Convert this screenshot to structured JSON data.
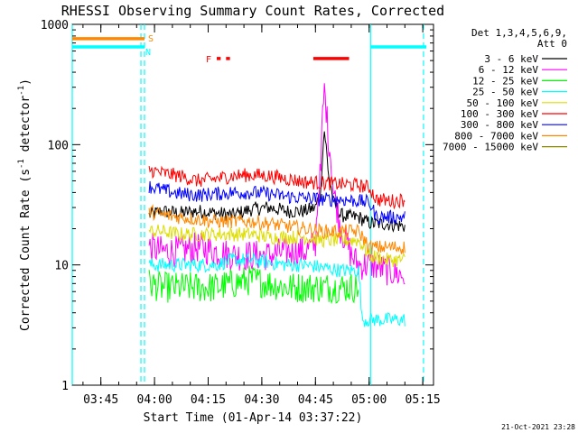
{
  "chart_data": {
    "type": "line",
    "title": "RHESSI Observing Summary Count Rates, Corrected",
    "xlabel": "Start Time (01-Apr-14 03:37:22)",
    "ylabel": "Corrected Count Rate (s",
    "ylabel_sup1": "-1",
    "ylabel_mid": " detector",
    "ylabel_sup2": "-1",
    "ylabel_end": ")",
    "y_scale": "log",
    "ylim": [
      1,
      1000
    ],
    "xlim_minutes_after_0337": [
      0,
      101
    ],
    "y_ticks": [
      {
        "value": 1,
        "label": "1"
      },
      {
        "value": 10,
        "label": "10"
      },
      {
        "value": 100,
        "label": "100"
      },
      {
        "value": 1000,
        "label": "1000"
      }
    ],
    "x_ticks": [
      {
        "minute": 8,
        "label": "03:45"
      },
      {
        "minute": 23,
        "label": "04:00"
      },
      {
        "minute": 38,
        "label": "04:15"
      },
      {
        "minute": 53,
        "label": "04:30"
      },
      {
        "minute": 68,
        "label": "04:45"
      },
      {
        "minute": 83,
        "label": "05:00"
      },
      {
        "minute": 98,
        "label": "05:15"
      }
    ],
    "legend": {
      "position": "right",
      "header": [
        "Det 1,3,4,5,6,9,",
        "Att 0"
      ]
    },
    "series": [
      {
        "name": "3 - 6 keV",
        "color": "#000000",
        "points": [
          [
            21.5,
            26
          ],
          [
            25,
            28
          ],
          [
            30,
            27
          ],
          [
            35,
            28
          ],
          [
            40,
            27
          ],
          [
            45,
            26
          ],
          [
            50,
            29
          ],
          [
            55,
            30
          ],
          [
            60,
            28
          ],
          [
            65,
            28
          ],
          [
            68,
            30
          ],
          [
            69.5,
            40
          ],
          [
            70.5,
            130
          ],
          [
            71.5,
            60
          ],
          [
            73,
            33
          ],
          [
            75,
            26
          ],
          [
            78,
            25
          ],
          [
            80,
            25
          ],
          [
            82,
            23
          ],
          [
            84,
            22
          ],
          [
            88,
            22
          ],
          [
            93,
            21
          ]
        ]
      },
      {
        "name": "6 - 12 keV",
        "color": "#ff00ff",
        "points": [
          [
            21.5,
            14
          ],
          [
            25,
            13
          ],
          [
            30,
            13
          ],
          [
            35,
            14
          ],
          [
            40,
            13
          ],
          [
            45,
            12
          ],
          [
            50,
            12
          ],
          [
            55,
            12
          ],
          [
            60,
            13
          ],
          [
            65,
            13
          ],
          [
            68,
            15
          ],
          [
            69.5,
            60
          ],
          [
            70.5,
            280
          ],
          [
            71.5,
            120
          ],
          [
            73,
            40
          ],
          [
            75,
            20
          ],
          [
            78,
            12
          ],
          [
            80,
            10
          ],
          [
            82,
            10
          ],
          [
            84,
            10
          ],
          [
            88,
            9
          ],
          [
            93,
            8
          ]
        ]
      },
      {
        "name": "12 - 25 keV",
        "color": "#00ff00",
        "points": [
          [
            21.5,
            7
          ],
          [
            25,
            6.5
          ],
          [
            30,
            6.5
          ],
          [
            35,
            6.5
          ],
          [
            40,
            6.5
          ],
          [
            45,
            7
          ],
          [
            50,
            7.5
          ],
          [
            55,
            7
          ],
          [
            60,
            6.5
          ],
          [
            65,
            6.5
          ],
          [
            70,
            6.5
          ],
          [
            75,
            6.5
          ],
          [
            78,
            6.5
          ],
          [
            80,
            6.5
          ]
        ]
      },
      {
        "name": "25 - 50 keV",
        "color": "#00ffff",
        "points": [
          [
            21.5,
            10
          ],
          [
            25,
            10
          ],
          [
            30,
            10
          ],
          [
            35,
            10
          ],
          [
            40,
            10
          ],
          [
            45,
            11
          ],
          [
            50,
            11
          ],
          [
            55,
            10.5
          ],
          [
            60,
            10
          ],
          [
            65,
            10
          ],
          [
            70,
            9.5
          ],
          [
            75,
            9
          ],
          [
            78,
            9
          ],
          [
            80,
            9
          ],
          [
            81,
            3.5
          ],
          [
            85,
            3.5
          ],
          [
            90,
            3.5
          ],
          [
            93,
            3.5
          ]
        ]
      },
      {
        "name": "50 - 100 keV",
        "color": "#dddd00",
        "points": [
          [
            21.5,
            19
          ],
          [
            25,
            19
          ],
          [
            30,
            18
          ],
          [
            35,
            18
          ],
          [
            40,
            18
          ],
          [
            45,
            18
          ],
          [
            50,
            18
          ],
          [
            55,
            17
          ],
          [
            60,
            17
          ],
          [
            65,
            17
          ],
          [
            70,
            16
          ],
          [
            75,
            16
          ],
          [
            80,
            16
          ],
          [
            83,
            12
          ],
          [
            88,
            11
          ],
          [
            93,
            11
          ]
        ]
      },
      {
        "name": "100 - 300 keV",
        "color": "#ff0000",
        "points": [
          [
            21.5,
            62
          ],
          [
            25,
            58
          ],
          [
            30,
            55
          ],
          [
            35,
            50
          ],
          [
            40,
            52
          ],
          [
            45,
            55
          ],
          [
            50,
            56
          ],
          [
            55,
            55
          ],
          [
            60,
            52
          ],
          [
            65,
            49
          ],
          [
            70,
            48
          ],
          [
            75,
            47
          ],
          [
            80,
            46
          ],
          [
            83,
            44
          ],
          [
            85,
            35
          ],
          [
            90,
            34
          ],
          [
            93,
            35
          ]
        ]
      },
      {
        "name": "300 - 800 keV",
        "color": "#0000ff",
        "points": [
          [
            21.5,
            45
          ],
          [
            25,
            42
          ],
          [
            30,
            39
          ],
          [
            35,
            38
          ],
          [
            40,
            39
          ],
          [
            45,
            40
          ],
          [
            50,
            40
          ],
          [
            55,
            39
          ],
          [
            60,
            37
          ],
          [
            65,
            36
          ],
          [
            70,
            35
          ],
          [
            75,
            35
          ],
          [
            80,
            34
          ],
          [
            83,
            33
          ],
          [
            85,
            25
          ],
          [
            90,
            25
          ],
          [
            93,
            25
          ]
        ]
      },
      {
        "name": "800 - 7000 keV",
        "color": "#ff8800",
        "points": [
          [
            21.5,
            28
          ],
          [
            25,
            26
          ],
          [
            30,
            25
          ],
          [
            35,
            24
          ],
          [
            40,
            23
          ],
          [
            45,
            23
          ],
          [
            50,
            23
          ],
          [
            55,
            22
          ],
          [
            60,
            21
          ],
          [
            65,
            20
          ],
          [
            70,
            19
          ],
          [
            75,
            19
          ],
          [
            80,
            19
          ],
          [
            83,
            14
          ],
          [
            88,
            14
          ],
          [
            93,
            14
          ]
        ]
      },
      {
        "name": "7000 - 15000 keV",
        "color": "#888800",
        "points": []
      }
    ],
    "flags": [
      {
        "label": "S",
        "color": "#ff8800",
        "y_value": 760,
        "from": 0,
        "to": 20.2
      },
      {
        "label": "N",
        "color": "#00ffff",
        "y_value": 650,
        "from": 0,
        "to": 20.2,
        "extra_from": 83.4,
        "extra_to": 99
      },
      {
        "label": "F",
        "color": "#ff0000",
        "y_value": 520,
        "dashes": [
          [
            40.4,
            41.5
          ],
          [
            43,
            44.1
          ]
        ],
        "solid": [
          [
            67.4,
            77.4
          ]
        ]
      }
    ],
    "vertical_markers": [
      {
        "minute": 0,
        "color": "#00ffff",
        "style": "solid"
      },
      {
        "minute": 19.2,
        "color": "#00ffff",
        "style": "dashed"
      },
      {
        "minute": 20.2,
        "color": "#00ffff",
        "style": "dashed"
      },
      {
        "minute": 83.4,
        "color": "#00ffff",
        "style": "solid"
      },
      {
        "minute": 98.2,
        "color": "#00ffff",
        "style": "dashed"
      }
    ]
  },
  "footer": {
    "timestamp": "21-Oct-2021 23:28"
  }
}
